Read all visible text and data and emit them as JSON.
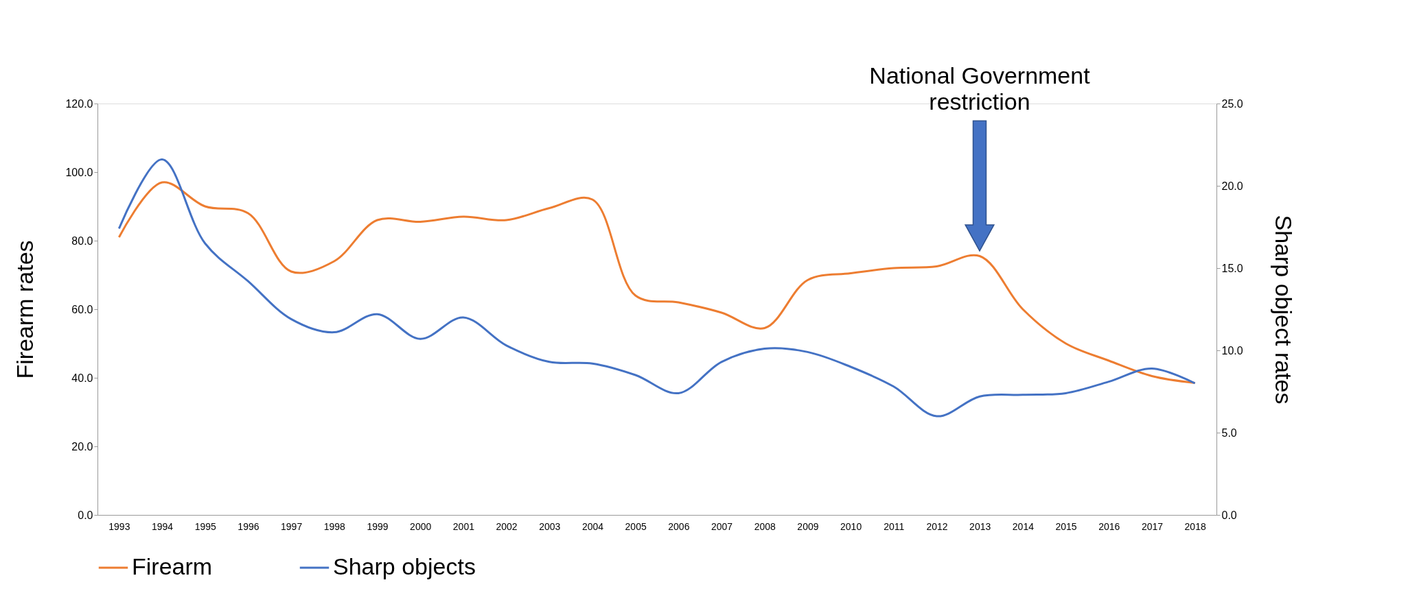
{
  "chart_data": {
    "type": "line",
    "xlabel": null,
    "ylabel": "Firearm rates",
    "y2label": "Sharp object rates",
    "categories": [
      "1993",
      "1994",
      "1995",
      "1996",
      "1997",
      "1998",
      "1999",
      "2000",
      "2001",
      "2002",
      "2003",
      "2004",
      "2005",
      "2006",
      "2007",
      "2008",
      "2009",
      "2010",
      "2011",
      "2012",
      "2013",
      "2014",
      "2015",
      "2016",
      "2017",
      "2018"
    ],
    "series": [
      {
        "name": "Firearm",
        "color": "#ed7d31",
        "values": [
          81,
          97,
          90,
          88,
          71,
          74,
          86,
          85.5,
          87,
          86,
          89.5,
          92,
          64,
          62,
          59,
          54.5,
          68.5,
          70.5,
          72,
          72.5,
          75.5,
          60,
          50,
          45,
          40.5,
          38.5
        ]
      },
      {
        "name": "Sharp objects",
        "color": "#4472c4",
        "axis": "y2",
        "values": [
          17.4,
          21.6,
          16.5,
          14.2,
          11.9,
          11.1,
          12.2,
          10.7,
          12.0,
          10.3,
          9.3,
          9.2,
          8.5,
          7.4,
          9.3,
          10.1,
          9.9,
          9.0,
          7.8,
          6.0,
          7.2,
          7.3,
          7.4,
          8.1,
          8.9,
          8.0
        ]
      }
    ],
    "ylim": [
      0,
      120
    ],
    "yticks": [
      {
        "value": 0,
        "label": "0.0"
      },
      {
        "value": 20,
        "label": "20.0"
      },
      {
        "value": 40,
        "label": "40.0"
      },
      {
        "value": 60,
        "label": "60.0"
      },
      {
        "value": 80,
        "label": "80.0"
      },
      {
        "value": 100,
        "label": "100.0"
      },
      {
        "value": 120,
        "label": "120.0"
      }
    ],
    "y2lim": [
      0,
      25
    ],
    "y2ticks": [
      {
        "value": 0,
        "label": "0.0"
      },
      {
        "value": 5,
        "label": "5.0"
      },
      {
        "value": 10,
        "label": "10.0"
      },
      {
        "value": 15,
        "label": "15.0"
      },
      {
        "value": 20,
        "label": "20.0"
      },
      {
        "value": 25,
        "label": "25.0"
      }
    ],
    "annotations": [
      "National Government restriction"
    ],
    "grid": false,
    "legend": "bottom",
    "marker": "none",
    "line_style": "solid"
  }
}
